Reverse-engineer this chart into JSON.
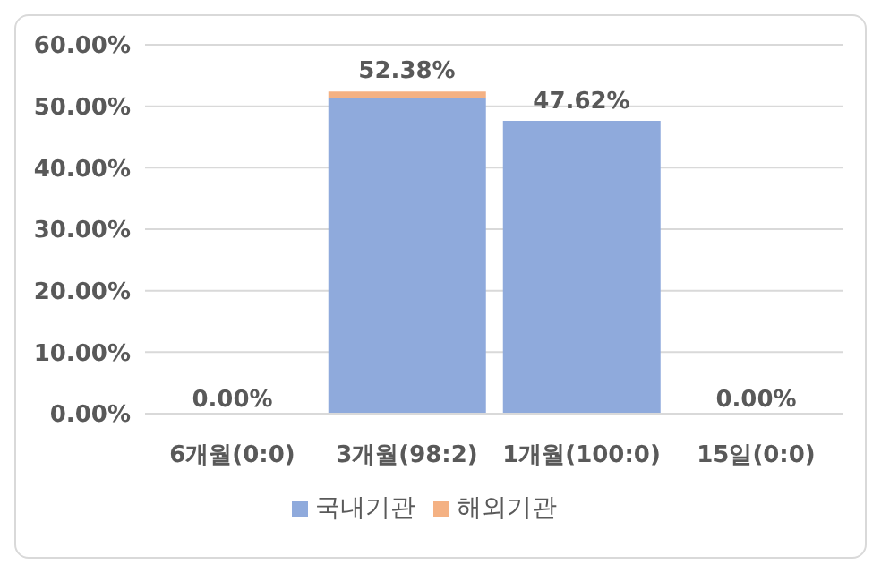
{
  "chart_data": {
    "type": "bar",
    "stacked": true,
    "categories": [
      "6개월(0:0)",
      "3개월(98:2)",
      "1개월(100:0)",
      "15일(0:0)"
    ],
    "series": [
      {
        "name": "국내기관",
        "color": "#8faadc",
        "values": [
          0,
          51.33,
          47.62,
          0
        ]
      },
      {
        "name": "해외기관",
        "color": "#f4b183",
        "values": [
          0,
          1.05,
          0,
          0
        ]
      }
    ],
    "totals": [
      "0.00%",
      "52.38%",
      "47.62%",
      "0.00%"
    ],
    "ylim": [
      0,
      60
    ],
    "yticks": [
      {
        "value": 0,
        "label": "0.00%"
      },
      {
        "value": 10,
        "label": "10.00%"
      },
      {
        "value": 20,
        "label": "20.00%"
      },
      {
        "value": 30,
        "label": "30.00%"
      },
      {
        "value": 40,
        "label": "40.00%"
      },
      {
        "value": 50,
        "label": "50.00%"
      },
      {
        "value": 60,
        "label": "60.00%"
      }
    ],
    "grid": "y",
    "legend": "bottom"
  }
}
